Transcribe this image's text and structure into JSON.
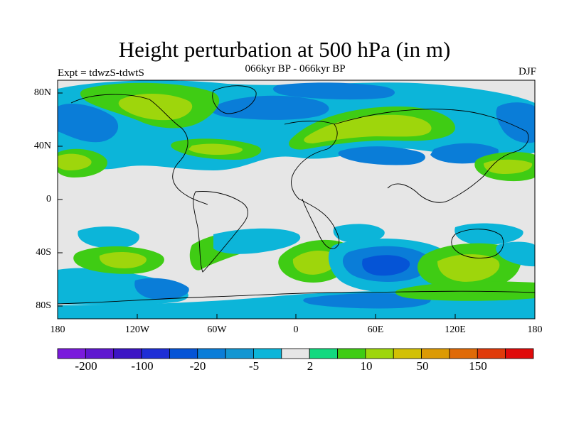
{
  "title": "Height perturbation at 500 hPa (in m)",
  "left_label": "Expt = tdwzS-tdwtS",
  "center_label": "066kyr BP - 066kyr BP",
  "right_label": "DJF",
  "map": {
    "projection": "cylindrical-equidistant",
    "background_color": "#e6e6e6",
    "lat_labels": [
      "80N",
      "40N",
      "0",
      "40S",
      "80S"
    ],
    "lon_labels": [
      "180",
      "120W",
      "60W",
      "0",
      "60E",
      "120E",
      "180"
    ]
  },
  "colorbar": {
    "colors": [
      "#7a1bdc",
      "#5f17d0",
      "#3c15c4",
      "#1e2ed6",
      "#0554d6",
      "#0a7dd8",
      "#1296d2",
      "#0cb5d9",
      "#e6e6e6",
      "#12d97f",
      "#3fcc14",
      "#9ed60c",
      "#d2c005",
      "#dc9a04",
      "#e06a06",
      "#e03a0a",
      "#e00b0b"
    ],
    "labels": [
      "-200",
      "-100",
      "-20",
      "-5",
      "2",
      "10",
      "50",
      "150"
    ]
  },
  "contour_regions": [
    {
      "id": "nw-atlantic-green",
      "color": "#9ed60c"
    },
    {
      "id": "greenland-green",
      "color": "#9ed60c"
    },
    {
      "id": "eurasia-yellow",
      "color": "#9ed60c"
    },
    {
      "id": "n-pacific-blue",
      "color": "#0a7dd8"
    },
    {
      "id": "s-pacific-green",
      "color": "#9ed60c"
    },
    {
      "id": "s-atlantic-green",
      "color": "#9ed60c"
    },
    {
      "id": "s-indian-blue",
      "color": "#0554d6"
    },
    {
      "id": "australia-s-yellow",
      "color": "#9ed60c"
    }
  ]
}
